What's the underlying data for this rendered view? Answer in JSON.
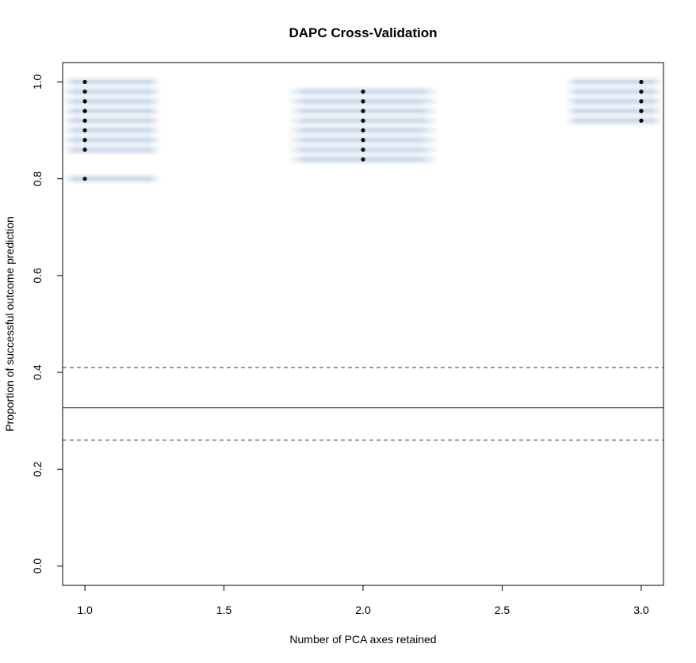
{
  "chart_data": {
    "type": "scatter",
    "title": "DAPC Cross-Validation",
    "xlabel": "Number of PCA axes retained",
    "ylabel": "Proportion of successful outcome prediction",
    "xlim": [
      0.92,
      3.08
    ],
    "ylim": [
      -0.04,
      1.04
    ],
    "xticks": [
      "1.0",
      "1.5",
      "2.0",
      "2.5",
      "3.0"
    ],
    "yticks": [
      "0.0",
      "0.2",
      "0.4",
      "0.6",
      "0.8",
      "1.0"
    ],
    "grid": false,
    "legend": "none",
    "colors": {
      "density": "#08519c",
      "points": "#000000",
      "lines": "#333333"
    },
    "series": [
      {
        "x": 1,
        "values": [
          1.0,
          0.98,
          0.96,
          0.94,
          0.92,
          0.9,
          0.88,
          0.86,
          0.8
        ]
      },
      {
        "x": 2,
        "values": [
          0.98,
          0.96,
          0.94,
          0.92,
          0.9,
          0.88,
          0.86,
          0.84
        ]
      },
      {
        "x": 3,
        "values": [
          1.0,
          0.98,
          0.96,
          0.94,
          0.92
        ]
      }
    ],
    "reference_lines": {
      "mean": 0.327,
      "lower": 0.26,
      "upper": 0.41
    }
  }
}
